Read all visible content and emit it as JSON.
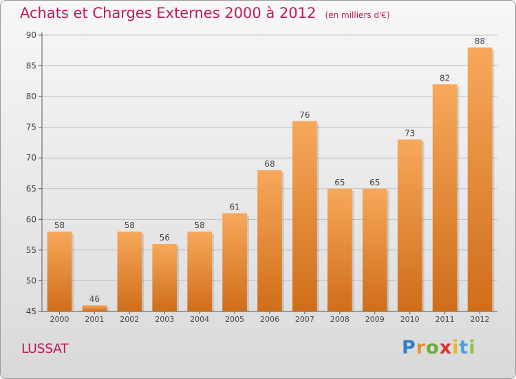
{
  "header": {
    "title": "Achats et Charges Externes 2000 à 2012",
    "unit": "(en milliers d'€)"
  },
  "footer": {
    "commune": "LUSSAT",
    "logo": [
      "P",
      "r",
      "o",
      "x",
      "i",
      "t",
      "i"
    ]
  },
  "colors": {
    "title": "#c2185b",
    "bar_light": "#f7a85a",
    "bar_dark": "#cf6d1a",
    "grid": "#bfbfbf"
  },
  "chart_data": {
    "type": "bar",
    "title": "Achats et Charges Externes 2000 à 2012",
    "subtitle": "(en milliers d'€)",
    "categories": [
      "2000",
      "2001",
      "2002",
      "2003",
      "2004",
      "2005",
      "2006",
      "2007",
      "2008",
      "2009",
      "2010",
      "2011",
      "2012"
    ],
    "values": [
      58,
      46,
      58,
      56,
      58,
      61,
      68,
      76,
      65,
      65,
      73,
      82,
      88
    ],
    "ylim": [
      45,
      90
    ],
    "yticks": [
      45,
      50,
      55,
      60,
      65,
      70,
      75,
      80,
      85,
      90
    ],
    "grid": true,
    "data_labels": true
  }
}
